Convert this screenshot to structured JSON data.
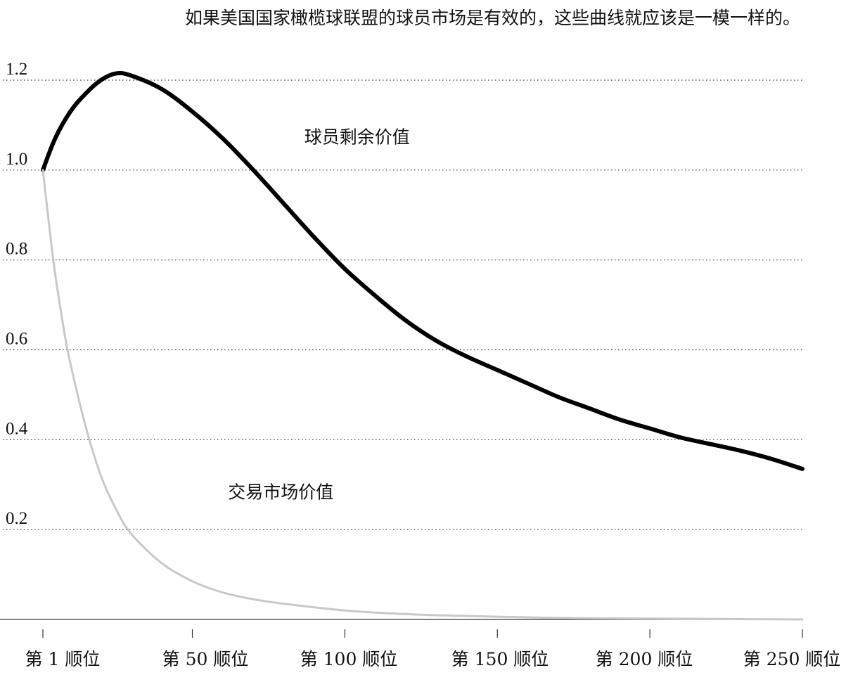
{
  "chart_data": {
    "type": "line",
    "title": "如果美国国家橄榄球联盟的球员市场是有效的，这些曲线就应该是一模一样的。",
    "xlabel": "",
    "ylabel": "",
    "xlim": [
      1,
      250
    ],
    "ylim": [
      0,
      1.2
    ],
    "grid": "horizontal-dotted",
    "x_ticks": [
      1,
      50,
      100,
      150,
      200,
      250
    ],
    "x_tick_labels": [
      "第 1 顺位",
      "第 50 顺位",
      "第 100 顺位",
      "第 150 顺位",
      "第 200 顺位",
      "第 250 顺位"
    ],
    "y_ticks": [
      0.2,
      0.4,
      0.6,
      0.8,
      1.0,
      1.2
    ],
    "y_tick_labels": [
      "0.2",
      "0.4",
      "0.6",
      "0.8",
      "1.0",
      "1.2"
    ],
    "series": [
      {
        "name": "球员剩余价值",
        "color": "#000000",
        "x": [
          1,
          5,
          10,
          15,
          20,
          25,
          30,
          40,
          50,
          60,
          70,
          80,
          90,
          100,
          110,
          120,
          130,
          140,
          150,
          160,
          170,
          180,
          190,
          200,
          210,
          220,
          230,
          240,
          250
        ],
        "y": [
          1.0,
          1.07,
          1.13,
          1.17,
          1.2,
          1.215,
          1.21,
          1.18,
          1.13,
          1.07,
          1.0,
          0.925,
          0.85,
          0.78,
          0.72,
          0.665,
          0.62,
          0.585,
          0.555,
          0.525,
          0.495,
          0.47,
          0.445,
          0.425,
          0.405,
          0.39,
          0.375,
          0.357,
          0.335
        ]
      },
      {
        "name": "交易市场价值",
        "color": "#c8c8c8",
        "x": [
          1,
          3,
          5,
          8,
          10,
          15,
          20,
          25,
          30,
          40,
          50,
          60,
          70,
          80,
          100,
          120,
          150,
          175,
          200,
          225,
          250
        ],
        "y": [
          1.0,
          0.88,
          0.77,
          0.64,
          0.57,
          0.43,
          0.32,
          0.245,
          0.19,
          0.125,
          0.085,
          0.06,
          0.045,
          0.035,
          0.02,
          0.012,
          0.006,
          0.003,
          0.002,
          0.001,
          0.0
        ]
      }
    ],
    "annotations": [
      {
        "text": "球员剩余价值",
        "x": 104,
        "y": 1.06
      },
      {
        "text": "交易市场价值",
        "x": 79,
        "y": 0.27
      }
    ]
  }
}
